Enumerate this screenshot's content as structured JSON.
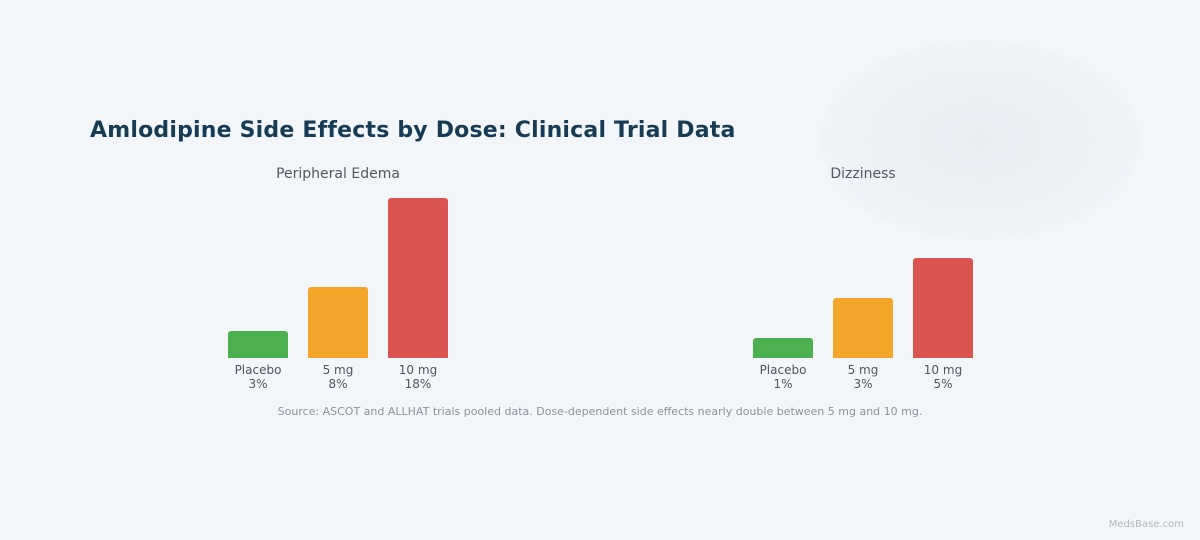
{
  "title": "Amlodipine Side Effects by Dose: Clinical Trial Data",
  "source_note": "Source: ASCOT and ALLHAT trials pooled data. Dose-dependent side effects nearly double between 5 mg and 10 mg.",
  "watermark": "MedsBase.com",
  "colors": {
    "placebo": "#4caf50",
    "mg5": "#f4a62a",
    "mg10": "#d9534f"
  },
  "chart_data": [
    {
      "type": "bar",
      "title": "Peripheral Edema",
      "categories": [
        "Placebo",
        "5 mg",
        "10 mg"
      ],
      "values": [
        3,
        8,
        18
      ],
      "value_labels": [
        "3%",
        "8%",
        "18%"
      ],
      "unit": "%",
      "colors": [
        "#4caf50",
        "#f4a62a",
        "#d9534f"
      ]
    },
    {
      "type": "bar",
      "title": "Dizziness",
      "categories": [
        "Placebo",
        "5 mg",
        "10 mg"
      ],
      "values": [
        1,
        3,
        5
      ],
      "value_labels": [
        "1%",
        "3%",
        "5%"
      ],
      "unit": "%",
      "colors": [
        "#4caf50",
        "#f4a62a",
        "#d9534f"
      ]
    }
  ]
}
